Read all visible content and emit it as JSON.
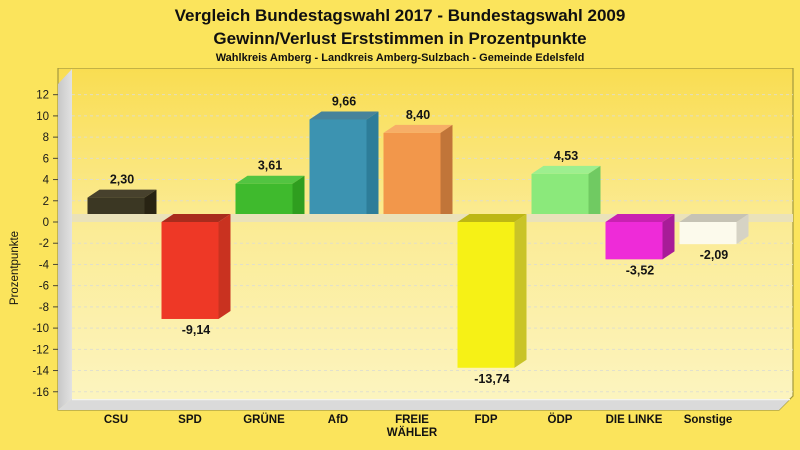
{
  "header": {
    "title_line1": "Vergleich Bundestagswahl 2017 - Bundestagswahl 2009",
    "title_line2": "Gewinn/Verlust Erststimmen in Prozentpunkte",
    "subtitle": "Wahlkreis Amberg - Landkreis Amberg-Sulzbach - Gemeinde Edelsfeld"
  },
  "chart_data": {
    "type": "bar",
    "title": "Vergleich Bundestagswahl 2017 - Bundestagswahl 2009",
    "subtitle": "Gewinn/Verlust Erststimmen in Prozentpunkte",
    "note": "Wahlkreis Amberg - Landkreis Amberg-Sulzbach - Gemeinde Edelsfeld",
    "categories": [
      "CSU",
      "SPD",
      "GRÜNE",
      "AfD",
      "FREIE WÄHLER",
      "FDP",
      "ÖDP",
      "DIE LINKE",
      "Sonstige"
    ],
    "values": [
      2.3,
      -9.14,
      3.61,
      9.66,
      8.4,
      -13.74,
      4.53,
      -3.52,
      -2.09
    ],
    "value_labels": [
      "2,30",
      "-9,14",
      "3,61",
      "9,66",
      "8,40",
      "-13,74",
      "4,53",
      "-3,52",
      "-2,09"
    ],
    "xlabel": "",
    "ylabel": "Prozentpunkte",
    "yticks": [
      12,
      10,
      8,
      6,
      4,
      2,
      0,
      -2,
      -4,
      -6,
      -8,
      -10,
      -12,
      -14,
      -16
    ],
    "ylim": [
      -16.9,
      14.5
    ],
    "grid": "horizontal-dashed",
    "legend": "none",
    "style_3d": true,
    "bar_colors": [
      {
        "party": "CSU",
        "front": "#3B3723",
        "top": "#47412D",
        "side": "#282313"
      },
      {
        "party": "SPD",
        "front": "#EE3826",
        "top": "#A92C1D",
        "side": "#C93220"
      },
      {
        "party": "GRÜNE",
        "front": "#3FBA2D",
        "top": "#52C441",
        "side": "#2F9E1F"
      },
      {
        "party": "AfD",
        "front": "#3C93B1",
        "top": "#47839B",
        "side": "#2D7D99"
      },
      {
        "party": "FREIE WÄHLER",
        "front": "#F2974B",
        "top": "#F7AE67",
        "side": "#C17539"
      },
      {
        "party": "FDP",
        "front": "#F6F116",
        "top": "#BDB714",
        "side": "#C9C427"
      },
      {
        "party": "ÖDP",
        "front": "#8BE97B",
        "top": "#9DEF8F",
        "side": "#70CA62"
      },
      {
        "party": "DIE LINKE",
        "front": "#EE2BD8",
        "top": "#C921B1",
        "side": "#A81C98"
      },
      {
        "party": "Sonstige",
        "front": "#FCFAEC",
        "top": "#C6C3B5",
        "side": "#D6D3C5"
      }
    ]
  },
  "style": {
    "page_bg": "#FBE45C",
    "plot_bg_top": "#F9DD51",
    "plot_bg_mid": "#FBEB94",
    "plot_bg_bottom": "#FCF5C2",
    "plot_border": "#A3993F",
    "wall_light": "#E2E2E2",
    "wall_dark": "#C7C7C7",
    "base_fill": "#DADADA",
    "base_highlight": "#F4F4EE",
    "grid_color": "#DDDDD2",
    "zero_band": "#EAE2BA",
    "tick_color": "#4A4636",
    "label_color": "#141414"
  }
}
